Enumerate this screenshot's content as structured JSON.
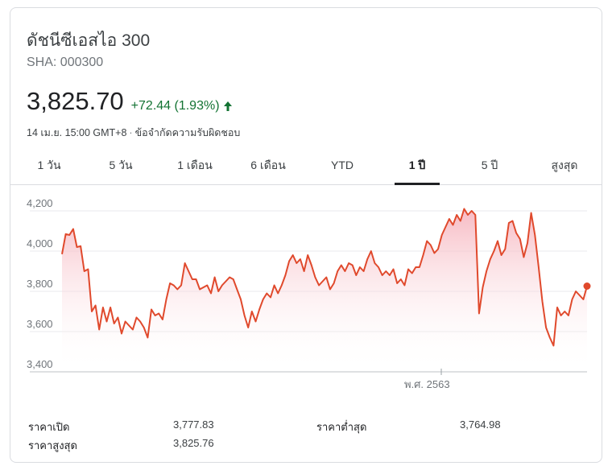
{
  "header": {
    "title": "ดัชนีซีเอสไอ 300",
    "ticker": "SHA: 000300",
    "price": "3,825.70",
    "change": "+72.44 (1.93%)",
    "timestamp": "14 เม.ย. 15:00 GMT+8",
    "disclaimer": "ข้อจำกัดความรับผิดชอบ"
  },
  "colors": {
    "line": "#e0492c",
    "fill_top": "#f6b3bd",
    "positive": "#137333",
    "grid": "#e8eaed"
  },
  "tabs": [
    {
      "label": "1 วัน",
      "active": false
    },
    {
      "label": "5 วัน",
      "active": false
    },
    {
      "label": "1 เดือน",
      "active": false
    },
    {
      "label": "6 เดือน",
      "active": false
    },
    {
      "label": "YTD",
      "active": false
    },
    {
      "label": "1 ปี",
      "active": true
    },
    {
      "label": "5 ปี",
      "active": false
    },
    {
      "label": "สูงสุด",
      "active": false
    }
  ],
  "stats": {
    "open_label": "ราคาเปิด",
    "open_value": "3,777.83",
    "low_label": "ราคาต่ำสุด",
    "low_value": "3,764.98",
    "high_label": "ราคาสูงสุด",
    "high_value": "3,825.76"
  },
  "chart_data": {
    "type": "line",
    "y_ticks": [
      "4,200",
      "4,000",
      "3,800",
      "3,600",
      "3,400"
    ],
    "ylim": [
      3400,
      4200
    ],
    "x_tick_labels": [
      "พ.ศ. 2563"
    ],
    "grid": true,
    "series": [
      {
        "values": [
          3985,
          4085,
          4080,
          4110,
          4020,
          4025,
          3900,
          3910,
          3700,
          3730,
          3610,
          3720,
          3650,
          3720,
          3640,
          3670,
          3590,
          3650,
          3630,
          3610,
          3670,
          3650,
          3620,
          3570,
          3710,
          3680,
          3690,
          3660,
          3760,
          3840,
          3830,
          3810,
          3830,
          3940,
          3900,
          3860,
          3860,
          3810,
          3820,
          3830,
          3790,
          3870,
          3800,
          3830,
          3850,
          3870,
          3860,
          3810,
          3760,
          3680,
          3620,
          3700,
          3650,
          3710,
          3760,
          3790,
          3770,
          3830,
          3790,
          3830,
          3880,
          3950,
          3980,
          3940,
          3960,
          3900,
          3980,
          3930,
          3870,
          3830,
          3850,
          3870,
          3810,
          3840,
          3900,
          3930,
          3900,
          3940,
          3930,
          3880,
          3920,
          3900,
          3960,
          4000,
          3940,
          3920,
          3880,
          3900,
          3880,
          3910,
          3840,
          3860,
          3830,
          3910,
          3890,
          3920,
          3920,
          3980,
          4050,
          4030,
          3990,
          4010,
          4080,
          4120,
          4160,
          4130,
          4180,
          4150,
          4210,
          4180,
          4200,
          4180,
          3690,
          3820,
          3900,
          3960,
          4000,
          4050,
          3980,
          4010,
          4140,
          4150,
          4090,
          4060,
          3970,
          4040,
          4190,
          4080,
          3920,
          3750,
          3620,
          3570,
          3530,
          3720,
          3680,
          3700,
          3680,
          3760,
          3800,
          3780,
          3760,
          3826
        ]
      }
    ]
  }
}
